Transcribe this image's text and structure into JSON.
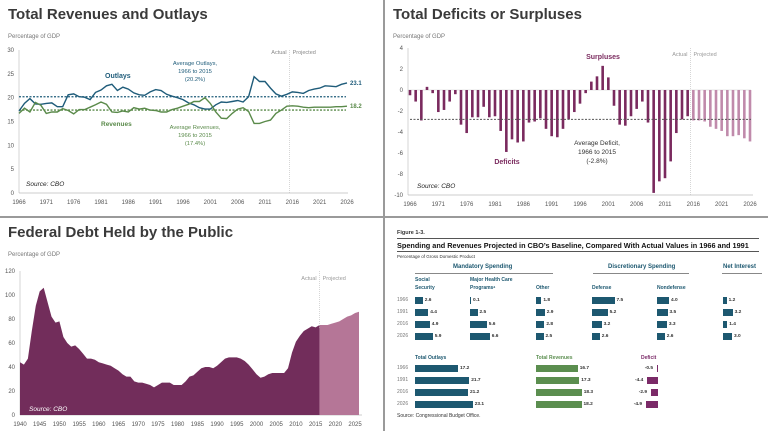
{
  "colors": {
    "outlays": "#1f5c7a",
    "revenues": "#5a8a4a",
    "deficit": "#7a2a5e",
    "deficit_projected": "#c08aab",
    "debt": "#722d5b",
    "debt_projected": "#b57697",
    "table_blue": "#1d5870",
    "table_green": "#5b8e4f",
    "table_purple": "#7b2a68"
  },
  "chart_data": [
    {
      "type": "line",
      "title": "Total Revenues and Outlays",
      "ylabel": "Percentage of GDP",
      "ylim": [
        0,
        30
      ],
      "yticks": [
        0,
        5,
        10,
        15,
        20,
        25,
        30
      ],
      "xticks": [
        1966,
        1971,
        1976,
        1981,
        1986,
        1991,
        1996,
        2001,
        2006,
        2011,
        2016,
        2021,
        2026
      ],
      "source": "Source:  CBO",
      "actual_label": "Actual",
      "projected_label": "Projected",
      "x_start": 1966,
      "series": [
        {
          "name": "Outlays",
          "end_label": "23.1",
          "values": [
            17.2,
            18.8,
            19.8,
            18.7,
            18.6,
            18.8,
            18.9,
            18.1,
            18.1,
            20.6,
            20.8,
            20.2,
            20.1,
            19.6,
            21.1,
            21.6,
            22.5,
            22.8,
            21.5,
            22.2,
            21.8,
            21.0,
            20.6,
            20.5,
            21.2,
            21.7,
            21.5,
            20.7,
            20.3,
            20.0,
            19.6,
            18.9,
            18.5,
            17.9,
            17.6,
            17.6,
            18.5,
            19.1,
            19.0,
            19.2,
            19.4,
            19.1,
            20.2,
            24.4,
            23.4,
            23.4,
            22.0,
            20.8,
            20.3,
            20.7,
            21.2,
            21.1,
            20.9,
            21.5,
            21.8,
            22.0,
            22.5,
            22.4,
            22.3,
            22.8,
            23.1
          ]
        },
        {
          "name": "Revenues",
          "end_label": "18.2",
          "values": [
            16.7,
            17.8,
            17.0,
            19.0,
            18.4,
            16.7,
            17.0,
            17.0,
            17.7,
            17.3,
            16.6,
            17.5,
            17.5,
            18.0,
            18.5,
            19.1,
            18.6,
            17.0,
            16.9,
            17.2,
            17.0,
            17.9,
            17.6,
            17.8,
            17.4,
            17.3,
            17.0,
            17.0,
            17.5,
            17.8,
            18.2,
            18.6,
            19.2,
            19.2,
            20.0,
            18.8,
            17.0,
            15.7,
            15.6,
            16.7,
            17.6,
            17.9,
            17.1,
            14.6,
            14.6,
            15.0,
            15.3,
            16.7,
            17.4,
            18.2,
            18.3,
            18.2,
            18.0,
            17.9,
            18.0,
            18.0,
            18.0,
            18.0,
            18.1,
            18.1,
            18.2
          ]
        }
      ],
      "averages": [
        {
          "value": 20.2,
          "label": [
            "Average Outlays,",
            "1966 to 2015",
            "(20.2%)"
          ]
        },
        {
          "value": 17.4,
          "label": [
            "Average Revenues,",
            "1966 to 2015",
            "(17.4%)"
          ]
        }
      ]
    },
    {
      "type": "bar",
      "title": "Total Deficits or Surpluses",
      "ylabel": "Percentage of GDP",
      "ylim": [
        -10,
        4
      ],
      "yticks": [
        -10,
        -8,
        -6,
        -4,
        -2,
        0,
        2,
        4
      ],
      "xticks": [
        1966,
        1971,
        1976,
        1981,
        1986,
        1991,
        1996,
        2001,
        2006,
        2011,
        2016,
        2021,
        2026
      ],
      "source": "Source:  CBO",
      "actual_label": "Actual",
      "projected_label": "Projected",
      "x_start": 1966,
      "first_projected": 2016,
      "surplus_label": "Surpluses",
      "deficit_label": "Deficits",
      "average": {
        "value": -2.8,
        "label": [
          "Average Deficit,",
          "1966 to 2015",
          "(-2.8%)"
        ]
      },
      "values": [
        -0.5,
        -1.1,
        -2.9,
        0.3,
        -0.3,
        -2.1,
        -1.9,
        -1.1,
        -0.4,
        -3.3,
        -4.1,
        -2.6,
        -2.6,
        -1.6,
        -2.6,
        -2.5,
        -3.9,
        -5.9,
        -4.7,
        -5.0,
        -4.9,
        -3.1,
        -3.0,
        -2.7,
        -3.7,
        -4.4,
        -4.5,
        -3.7,
        -2.8,
        -2.1,
        -1.3,
        -0.3,
        0.8,
        1.3,
        2.3,
        1.2,
        -1.5,
        -3.3,
        -3.4,
        -2.5,
        -1.8,
        -1.1,
        -3.1,
        -9.8,
        -8.7,
        -8.4,
        -6.8,
        -4.1,
        -2.8,
        -2.5,
        -2.9,
        -2.9,
        -3.0,
        -3.5,
        -3.7,
        -3.9,
        -4.4,
        -4.4,
        -4.3,
        -4.6,
        -4.9
      ]
    },
    {
      "type": "area",
      "title": "Federal Debt Held by the Public",
      "ylabel": "Percentage of GDP",
      "ylim": [
        0,
        120
      ],
      "yticks": [
        0,
        20,
        40,
        60,
        80,
        100,
        120
      ],
      "xticks": [
        1940,
        1945,
        1950,
        1955,
        1960,
        1965,
        1970,
        1975,
        1980,
        1985,
        1990,
        1995,
        2000,
        2005,
        2010,
        2015,
        2020,
        2025
      ],
      "source": "Source:  CBO",
      "actual_label": "Actual",
      "projected_label": "Projected",
      "x_start": 1940,
      "first_projected": 2016,
      "values": [
        44,
        42,
        47,
        70,
        91,
        103,
        106,
        94,
        82,
        77,
        78,
        65,
        60,
        57,
        58,
        55,
        51,
        47,
        47,
        46,
        44,
        43,
        42,
        41,
        39,
        37,
        34,
        32,
        32,
        28,
        27,
        27,
        26,
        25,
        23,
        25,
        27,
        27,
        27,
        25,
        25,
        25,
        28,
        32,
        33,
        36,
        39,
        40,
        40,
        39,
        41,
        44,
        47,
        48,
        48,
        48,
        47,
        45,
        42,
        38,
        34,
        31,
        32,
        34,
        35,
        35,
        35,
        35,
        39,
        52,
        61,
        66,
        70,
        72,
        74,
        73,
        75,
        75,
        75,
        76,
        77,
        78,
        80,
        82,
        83,
        85,
        86
      ]
    },
    {
      "type": "table",
      "figure": "Figure 1-3.",
      "title": "Spending and Revenues Projected in CBO’s Baseline, Compared With Actual Values in 1966 and 1991",
      "subtitle": "Percentage of Gross Domestic Product",
      "years": [
        "1966",
        "1991",
        "2016",
        "2026"
      ],
      "groups": [
        {
          "label": "Mandatory Spending"
        },
        {
          "label": "Discretionary Spending"
        },
        {
          "label": "Net Interest"
        }
      ],
      "columns": [
        {
          "label": [
            "Social",
            "Security"
          ],
          "values": [
            2.6,
            4.4,
            4.9,
            5.9
          ],
          "labels": [
            "2.6",
            "4.4",
            "4.9",
            "5.9"
          ]
        },
        {
          "label": [
            "Major Health Care",
            "Programsᵃ"
          ],
          "values": [
            0.1,
            2.5,
            5.6,
            6.6
          ],
          "labels": [
            "0.1",
            "2.5",
            "5.6",
            "6.6"
          ]
        },
        {
          "label": [
            "",
            "Other"
          ],
          "values": [
            1.8,
            2.9,
            2.8,
            2.5
          ],
          "labels": [
            "1.8",
            "2.9",
            "2.8",
            "2.5"
          ]
        },
        {
          "label": [
            "",
            "Defense"
          ],
          "values": [
            7.5,
            5.2,
            3.2,
            2.6
          ],
          "labels": [
            "7.5",
            "5.2",
            "3.2",
            "2.6"
          ]
        },
        {
          "label": [
            "",
            "Nondefense"
          ],
          "values": [
            4.0,
            3.5,
            3.3,
            2.6
          ],
          "labels": [
            "4.0",
            "3.5",
            "3.3",
            "2.6"
          ]
        },
        {
          "label": [
            "",
            ""
          ],
          "values": [
            1.2,
            3.2,
            1.4,
            3.0
          ],
          "labels": [
            "1.2",
            "3.2",
            "1.4",
            "3.0"
          ]
        }
      ],
      "totals": [
        {
          "label": "Total Outlays",
          "values": [
            17.2,
            21.7,
            21.2,
            23.1
          ],
          "labels": [
            "17.2",
            "21.7",
            "21.2",
            "23.1"
          ]
        },
        {
          "label": "Total Revenues",
          "values": [
            16.7,
            17.3,
            18.3,
            18.2
          ],
          "labels": [
            "16.7",
            "17.3",
            "18.3",
            "18.2"
          ]
        },
        {
          "label": "Deficit",
          "values": [
            -0.5,
            -4.4,
            -2.9,
            -4.9
          ],
          "labels": [
            "-0.5",
            "-4.4",
            "-2.9",
            "-4.9"
          ]
        }
      ],
      "source": "Source: Congressional Budget Office."
    }
  ]
}
